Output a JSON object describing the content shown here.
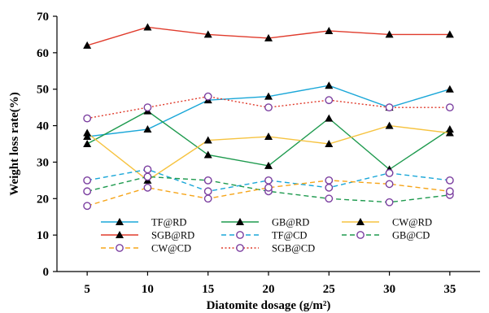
{
  "chart_data": {
    "type": "line",
    "xlabel": "Diatomite dosage (g/m²)",
    "ylabel": "Weight loss rate(%)",
    "x": [
      5,
      10,
      15,
      20,
      25,
      30,
      35
    ],
    "xticks": [
      "5",
      "10",
      "15",
      "20",
      "25",
      "30",
      "35"
    ],
    "ylim": [
      0,
      70
    ],
    "yticks": [
      "0",
      "10",
      "20",
      "30",
      "40",
      "50",
      "60",
      "70"
    ],
    "grid": false,
    "legend_position": "bottom",
    "series": [
      {
        "name": "TF@RD",
        "values": [
          37,
          39,
          47,
          48,
          51,
          45,
          50
        ],
        "color": "#1aa7d8",
        "dash": "solid",
        "marker": "triangle"
      },
      {
        "name": "GB@RD",
        "values": [
          35,
          44,
          32,
          29,
          42,
          28,
          39
        ],
        "color": "#1e9a4e",
        "dash": "solid",
        "marker": "triangle"
      },
      {
        "name": "CW@RD",
        "values": [
          38,
          25,
          36,
          37,
          35,
          40,
          38
        ],
        "color": "#f6c340",
        "dash": "solid",
        "marker": "triangle"
      },
      {
        "name": "SGB@RD",
        "values": [
          62,
          67,
          65,
          64,
          66,
          65,
          65
        ],
        "color": "#e03b2c",
        "dash": "solid",
        "marker": "triangle"
      },
      {
        "name": "TF@CD",
        "values": [
          25,
          28,
          22,
          25,
          23,
          27,
          25
        ],
        "color": "#1aa7d8",
        "dash": "dashed",
        "marker": "circle"
      },
      {
        "name": "GB@CD",
        "values": [
          22,
          26,
          25,
          22,
          20,
          19,
          21
        ],
        "color": "#1e9a4e",
        "dash": "dashed",
        "marker": "circle"
      },
      {
        "name": "CW@CD",
        "values": [
          18,
          23,
          20,
          23,
          25,
          24,
          22
        ],
        "color": "#f6a51a",
        "dash": "dashed",
        "marker": "circle"
      },
      {
        "name": "SGB@CD",
        "values": [
          42,
          45,
          48,
          45,
          47,
          45,
          45
        ],
        "color": "#e03b2c",
        "dash": "dotted",
        "marker": "circle"
      }
    ],
    "marker_colors": {
      "triangle_fill": "#000000",
      "circle_stroke": "#7b3fa0"
    }
  }
}
